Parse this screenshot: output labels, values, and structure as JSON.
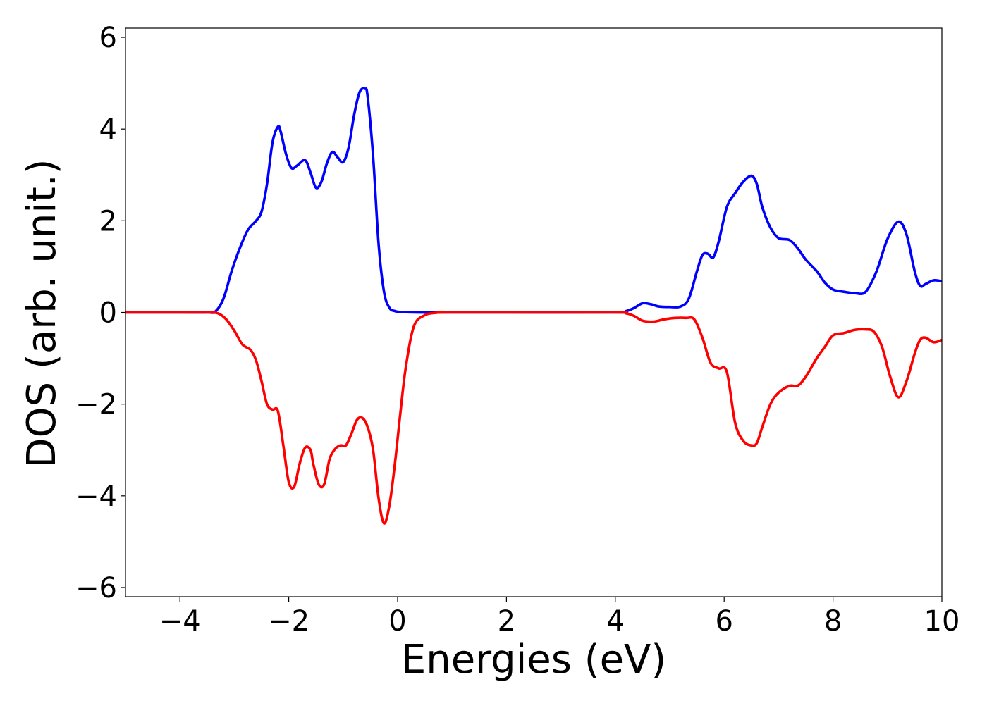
{
  "chart_data": {
    "type": "line",
    "title": "",
    "xlabel": "Energies (eV)",
    "ylabel": "DOS (arb. unit.)",
    "xlim": [
      -5,
      10
    ],
    "ylim": [
      -6.2,
      6.2
    ],
    "xticks": [
      -4,
      -2,
      0,
      2,
      4,
      6,
      8,
      10
    ],
    "xtick_labels": [
      "−4",
      "−2",
      "0",
      "2",
      "4",
      "6",
      "8",
      "10"
    ],
    "yticks": [
      -6,
      -4,
      -2,
      0,
      2,
      4,
      6
    ],
    "ytick_labels": [
      "−6",
      "−4",
      "−2",
      "0",
      "2",
      "4",
      "6"
    ],
    "grid": false,
    "legend": "none",
    "series": [
      {
        "color": "#0000ff",
        "x": [
          -5,
          -4,
          -3.5,
          -3.35,
          -3.2,
          -3.05,
          -2.9,
          -2.75,
          -2.6,
          -2.5,
          -2.4,
          -2.3,
          -2.2,
          -2.15,
          -2.05,
          -1.95,
          -1.85,
          -1.7,
          -1.6,
          -1.5,
          -1.4,
          -1.3,
          -1.2,
          -1.1,
          -1.0,
          -0.9,
          -0.8,
          -0.7,
          -0.6,
          -0.55,
          -0.45,
          -0.35,
          -0.25,
          -0.15,
          -0.05,
          0.05,
          0.3,
          0.7,
          2,
          4,
          4.2,
          4.35,
          4.5,
          4.65,
          4.8,
          5.0,
          5.2,
          5.35,
          5.5,
          5.6,
          5.7,
          5.8,
          5.9,
          6.05,
          6.2,
          6.35,
          6.5,
          6.6,
          6.7,
          6.85,
          7.0,
          7.2,
          7.35,
          7.5,
          7.7,
          7.85,
          8.0,
          8.2,
          8.4,
          8.6,
          8.8,
          9.0,
          9.2,
          9.35,
          9.5,
          9.6,
          9.7,
          9.85,
          10
        ],
        "y": [
          0,
          0,
          0,
          0.02,
          0.3,
          0.9,
          1.4,
          1.8,
          2.0,
          2.2,
          2.8,
          3.7,
          4.05,
          3.95,
          3.45,
          3.15,
          3.2,
          3.32,
          3.05,
          2.72,
          2.85,
          3.25,
          3.5,
          3.38,
          3.28,
          3.6,
          4.3,
          4.8,
          4.88,
          4.7,
          3.4,
          1.5,
          0.45,
          0.1,
          0.03,
          0.01,
          0,
          0,
          0,
          0,
          0.03,
          0.1,
          0.2,
          0.18,
          0.13,
          0.12,
          0.13,
          0.3,
          0.9,
          1.25,
          1.28,
          1.2,
          1.55,
          2.3,
          2.6,
          2.85,
          2.98,
          2.8,
          2.3,
          1.85,
          1.62,
          1.58,
          1.4,
          1.15,
          0.9,
          0.65,
          0.5,
          0.45,
          0.42,
          0.45,
          0.9,
          1.6,
          1.98,
          1.7,
          0.9,
          0.58,
          0.62,
          0.7,
          0.68
        ]
      },
      {
        "color": "#ff0000",
        "x": [
          -5,
          -4,
          -3.5,
          -3.3,
          -3.15,
          -3.0,
          -2.85,
          -2.7,
          -2.6,
          -2.5,
          -2.4,
          -2.3,
          -2.2,
          -2.1,
          -2.0,
          -1.9,
          -1.8,
          -1.7,
          -1.6,
          -1.55,
          -1.45,
          -1.35,
          -1.25,
          -1.15,
          -1.05,
          -0.95,
          -0.85,
          -0.75,
          -0.65,
          -0.55,
          -0.45,
          -0.35,
          -0.25,
          -0.15,
          -0.05,
          0.05,
          0.15,
          0.3,
          0.5,
          0.7,
          0.9,
          2,
          4,
          4.2,
          4.35,
          4.5,
          4.7,
          4.9,
          5.1,
          5.3,
          5.45,
          5.6,
          5.75,
          5.9,
          6.05,
          6.2,
          6.35,
          6.5,
          6.6,
          6.7,
          6.85,
          7.0,
          7.2,
          7.35,
          7.5,
          7.7,
          7.85,
          8.0,
          8.2,
          8.4,
          8.6,
          8.75,
          8.9,
          9.05,
          9.2,
          9.35,
          9.5,
          9.6,
          9.7,
          9.85,
          10
        ],
        "y": [
          0,
          0,
          0,
          -0.02,
          -0.15,
          -0.4,
          -0.7,
          -0.82,
          -1.05,
          -1.5,
          -2.0,
          -2.12,
          -2.15,
          -2.9,
          -3.7,
          -3.8,
          -3.3,
          -2.95,
          -3.0,
          -3.3,
          -3.75,
          -3.75,
          -3.2,
          -2.98,
          -2.9,
          -2.9,
          -2.65,
          -2.35,
          -2.3,
          -2.5,
          -3.0,
          -4.05,
          -4.6,
          -4.2,
          -3.3,
          -2.2,
          -1.2,
          -0.3,
          -0.06,
          -0.01,
          0,
          0,
          0,
          -0.02,
          -0.08,
          -0.18,
          -0.2,
          -0.15,
          -0.12,
          -0.12,
          -0.15,
          -0.55,
          -1.1,
          -1.22,
          -1.3,
          -2.4,
          -2.8,
          -2.9,
          -2.85,
          -2.5,
          -2.0,
          -1.75,
          -1.6,
          -1.6,
          -1.4,
          -1.0,
          -0.75,
          -0.5,
          -0.45,
          -0.38,
          -0.37,
          -0.42,
          -0.75,
          -1.4,
          -1.85,
          -1.5,
          -0.9,
          -0.6,
          -0.55,
          -0.65,
          -0.6
        ]
      }
    ]
  }
}
